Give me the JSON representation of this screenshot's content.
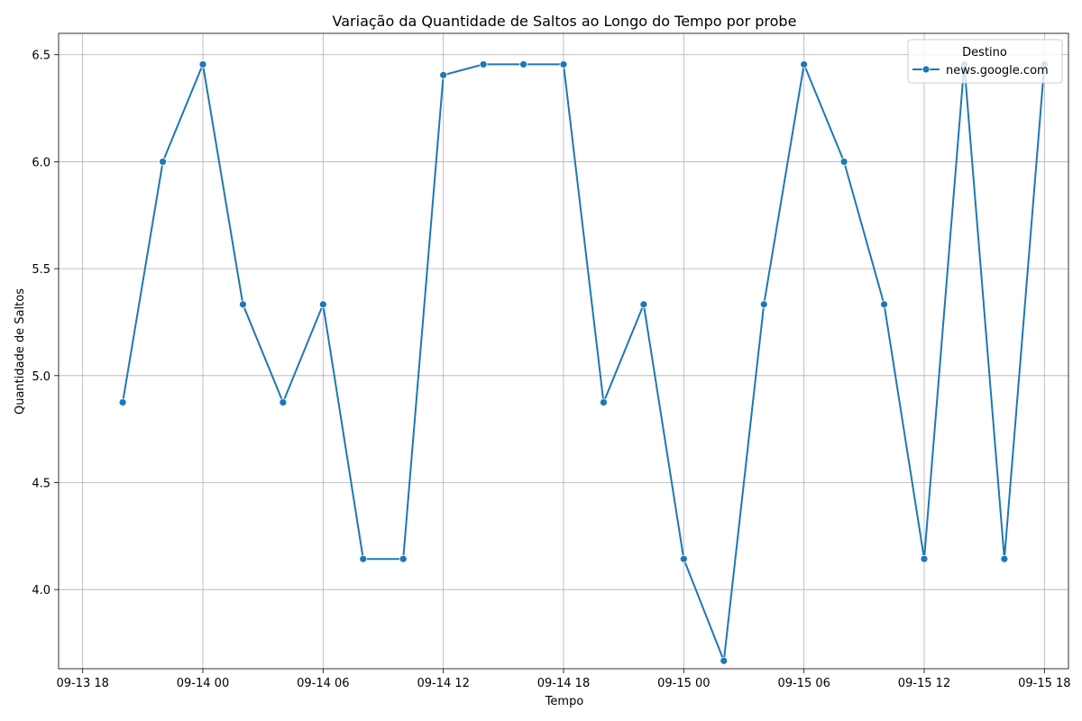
{
  "chart_data": {
    "type": "line",
    "title": "Variação da Quantidade de Saltos ao Longo do Tempo por probe",
    "xlabel": "Tempo",
    "ylabel": "Quantidade de Saltos",
    "x_tick_labels": [
      "09-13 18",
      "09-14 00",
      "09-14 06",
      "09-14 12",
      "09-14 18",
      "09-15 00",
      "09-15 06",
      "09-15 12",
      "09-15 18"
    ],
    "y_tick_labels": [
      "4.0",
      "4.5",
      "5.0",
      "5.5",
      "6.0",
      "6.5"
    ],
    "ylim": [
      3.63,
      6.6
    ],
    "grid": true,
    "legend": {
      "title": "Destino",
      "placement": "top-right"
    },
    "series": [
      {
        "name": "news.google.com",
        "color": "#1f77b4",
        "x": [
          "09-13 20",
          "09-13 22",
          "09-14 00",
          "09-14 02",
          "09-14 04",
          "09-14 06",
          "09-14 08",
          "09-14 10",
          "09-14 12",
          "09-14 14",
          "09-14 16",
          "09-14 18",
          "09-14 20",
          "09-14 22",
          "09-15 00",
          "09-15 02",
          "09-15 04",
          "09-15 06",
          "09-15 08",
          "09-15 10",
          "09-15 12",
          "09-15 14",
          "09-15 16",
          "09-15 18"
        ],
        "values": [
          4.875,
          6.0,
          6.455,
          5.333,
          4.875,
          5.333,
          4.143,
          4.143,
          6.405,
          6.455,
          6.455,
          6.455,
          4.875,
          5.333,
          4.143,
          3.667,
          5.333,
          6.455,
          6.0,
          5.333,
          4.143,
          6.455,
          4.143,
          6.455
        ]
      }
    ]
  }
}
